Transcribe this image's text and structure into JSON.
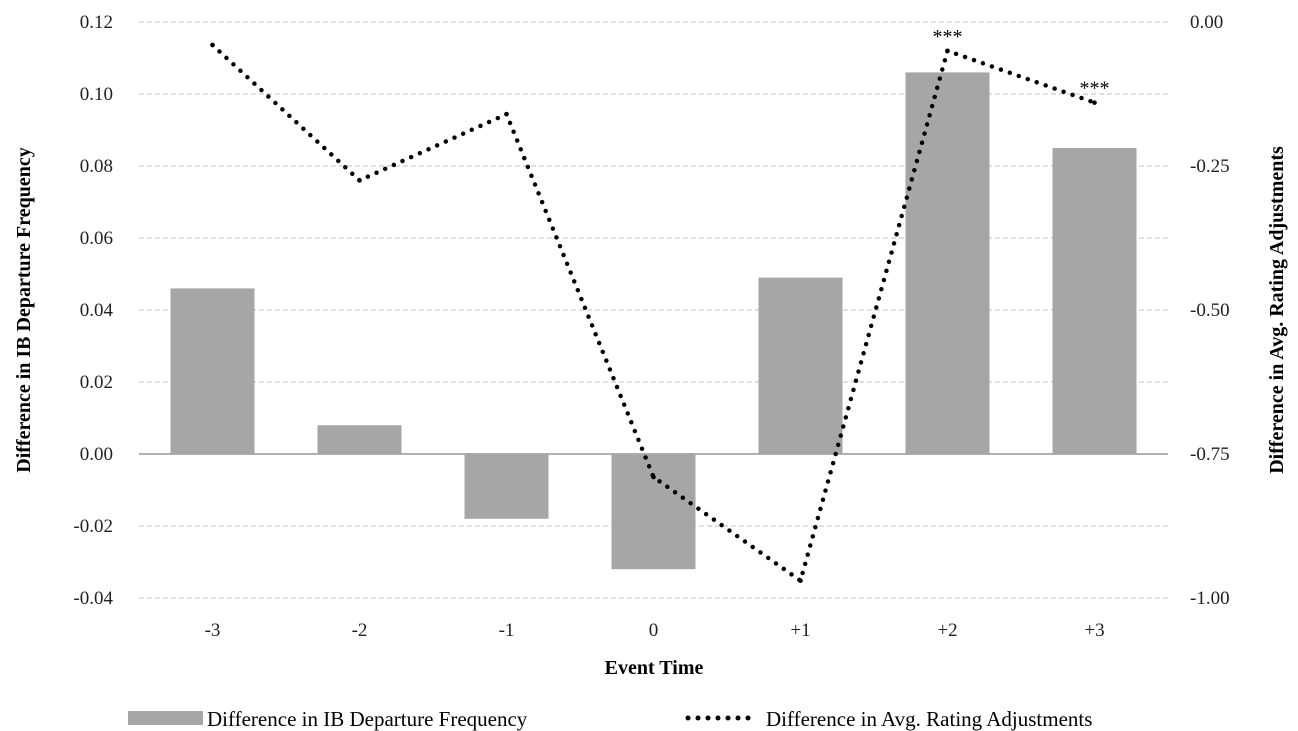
{
  "chart_data": {
    "type": "bar+line",
    "xlabel": "Event Time",
    "ylabel_left": "Difference in IB Departure Frequency",
    "ylabel_right": "Difference in Avg. Rating Adjustments",
    "categories": [
      "-3",
      "-2",
      "-1",
      "0",
      "+1",
      "+2",
      "+3"
    ],
    "ylim_left": [
      -0.04,
      0.12
    ],
    "yticks_left": [
      "0.12",
      "0.10",
      "0.08",
      "0.06",
      "0.04",
      "0.02",
      "0.00",
      "-0.02",
      "-0.04"
    ],
    "ylim_right": [
      -1.0,
      0.0
    ],
    "yticks_right": [
      "0.00",
      "-0.25",
      "-0.50",
      "-0.75",
      "-1.00"
    ],
    "grid": true,
    "legend_position": "bottom",
    "series": [
      {
        "name": "Difference in IB Departure Frequency",
        "kind": "bar",
        "axis": "left",
        "color": "#a6a6a6",
        "values": [
          0.046,
          0.008,
          -0.018,
          -0.032,
          0.049,
          0.106,
          0.085
        ]
      },
      {
        "name": "Difference in Avg. Rating Adjustments",
        "kind": "line",
        "style": "dotted",
        "axis": "right",
        "color": "#000000",
        "values": [
          -0.04,
          -0.275,
          -0.16,
          -0.79,
          -0.97,
          -0.05,
          -0.14
        ]
      }
    ],
    "annotations": [
      {
        "category": "+2",
        "series": "Difference in Avg. Rating Adjustments",
        "text": "***"
      },
      {
        "category": "+3",
        "series": "Difference in Avg. Rating Adjustments",
        "text": "***"
      }
    ]
  }
}
